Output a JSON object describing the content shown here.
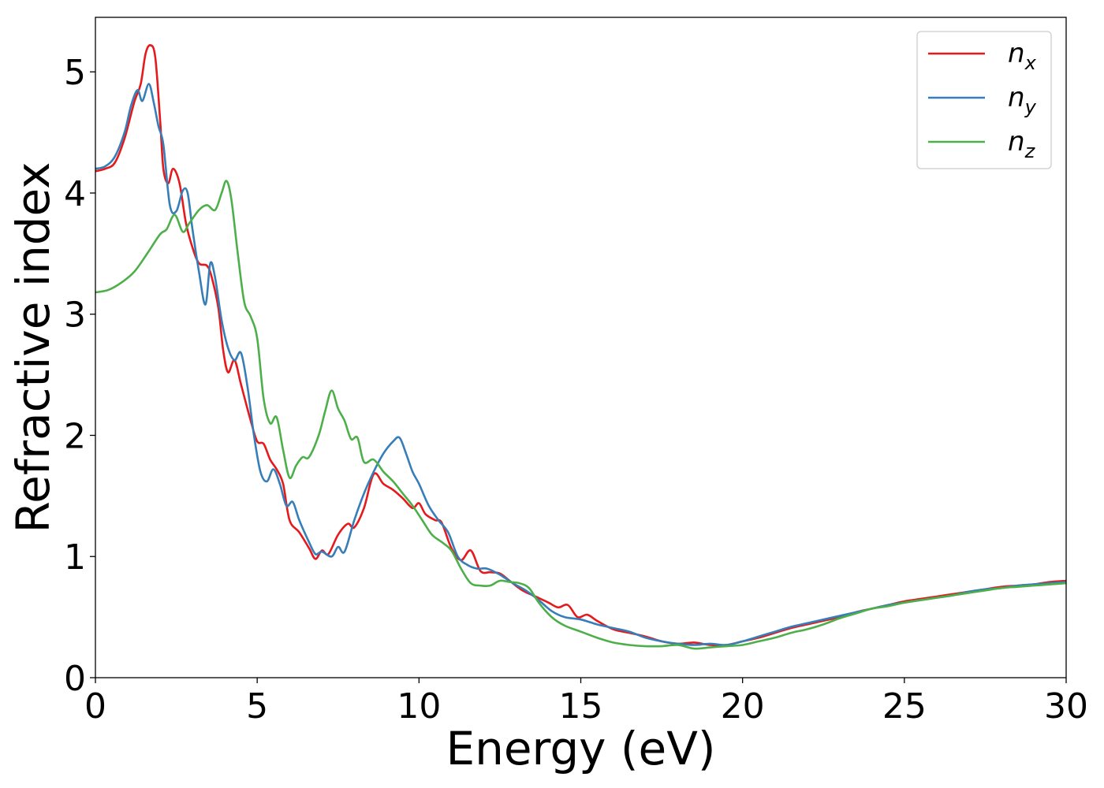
{
  "chart_data": {
    "type": "line",
    "title": "",
    "xlabel": "Energy (eV)",
    "ylabel": "Refractive index",
    "xlim": [
      0,
      30
    ],
    "ylim": [
      0,
      5.45
    ],
    "xticks": [
      0,
      5,
      10,
      15,
      20,
      25,
      30
    ],
    "yticks": [
      0,
      1,
      2,
      3,
      4,
      5
    ],
    "grid": false,
    "legend_position": "top-right",
    "series": [
      {
        "key": "nx",
        "base": "n",
        "sub": "x",
        "color": "#e41a1c",
        "points": [
          [
            0,
            4.18
          ],
          [
            0.3,
            4.2
          ],
          [
            0.6,
            4.25
          ],
          [
            0.9,
            4.45
          ],
          [
            1.2,
            4.75
          ],
          [
            1.4,
            4.9
          ],
          [
            1.55,
            5.15
          ],
          [
            1.7,
            5.22
          ],
          [
            1.85,
            5.12
          ],
          [
            2.0,
            4.6
          ],
          [
            2.1,
            4.2
          ],
          [
            2.25,
            4.08
          ],
          [
            2.4,
            4.2
          ],
          [
            2.6,
            4.08
          ],
          [
            2.8,
            3.75
          ],
          [
            3.0,
            3.55
          ],
          [
            3.2,
            3.42
          ],
          [
            3.45,
            3.4
          ],
          [
            3.6,
            3.3
          ],
          [
            3.8,
            3.05
          ],
          [
            3.95,
            2.7
          ],
          [
            4.1,
            2.52
          ],
          [
            4.3,
            2.62
          ],
          [
            4.5,
            2.42
          ],
          [
            4.8,
            2.12
          ],
          [
            5.0,
            1.95
          ],
          [
            5.2,
            1.93
          ],
          [
            5.4,
            1.8
          ],
          [
            5.6,
            1.72
          ],
          [
            5.8,
            1.6
          ],
          [
            6.0,
            1.3
          ],
          [
            6.3,
            1.2
          ],
          [
            6.6,
            1.07
          ],
          [
            6.8,
            0.98
          ],
          [
            7.0,
            1.05
          ],
          [
            7.2,
            1.02
          ],
          [
            7.5,
            1.18
          ],
          [
            7.8,
            1.27
          ],
          [
            8.0,
            1.24
          ],
          [
            8.3,
            1.4
          ],
          [
            8.6,
            1.68
          ],
          [
            8.9,
            1.6
          ],
          [
            9.2,
            1.55
          ],
          [
            9.5,
            1.48
          ],
          [
            9.8,
            1.4
          ],
          [
            10.0,
            1.44
          ],
          [
            10.2,
            1.35
          ],
          [
            10.5,
            1.3
          ],
          [
            10.7,
            1.28
          ],
          [
            11.0,
            1.07
          ],
          [
            11.3,
            0.97
          ],
          [
            11.6,
            1.05
          ],
          [
            11.9,
            0.88
          ],
          [
            12.2,
            0.87
          ],
          [
            12.5,
            0.86
          ],
          [
            12.8,
            0.8
          ],
          [
            13.2,
            0.72
          ],
          [
            13.6,
            0.67
          ],
          [
            14.0,
            0.62
          ],
          [
            14.3,
            0.58
          ],
          [
            14.6,
            0.6
          ],
          [
            14.9,
            0.5
          ],
          [
            15.2,
            0.52
          ],
          [
            15.5,
            0.47
          ],
          [
            16.0,
            0.4
          ],
          [
            16.5,
            0.37
          ],
          [
            17.0,
            0.34
          ],
          [
            17.5,
            0.3
          ],
          [
            18.0,
            0.28
          ],
          [
            18.5,
            0.29
          ],
          [
            19.0,
            0.27
          ],
          [
            19.5,
            0.27
          ],
          [
            20.0,
            0.3
          ],
          [
            20.5,
            0.33
          ],
          [
            21.0,
            0.37
          ],
          [
            21.5,
            0.41
          ],
          [
            22.0,
            0.44
          ],
          [
            22.5,
            0.47
          ],
          [
            23.0,
            0.5
          ],
          [
            23.5,
            0.54
          ],
          [
            24.0,
            0.57
          ],
          [
            24.5,
            0.6
          ],
          [
            25.0,
            0.63
          ],
          [
            25.5,
            0.65
          ],
          [
            26.0,
            0.67
          ],
          [
            26.5,
            0.69
          ],
          [
            27.0,
            0.71
          ],
          [
            27.5,
            0.73
          ],
          [
            28.0,
            0.75
          ],
          [
            28.5,
            0.76
          ],
          [
            29.0,
            0.77
          ],
          [
            29.5,
            0.79
          ],
          [
            30.0,
            0.8
          ]
        ]
      },
      {
        "key": "ny",
        "base": "n",
        "sub": "y",
        "color": "#377eb8",
        "points": [
          [
            0,
            4.2
          ],
          [
            0.3,
            4.22
          ],
          [
            0.6,
            4.3
          ],
          [
            0.9,
            4.5
          ],
          [
            1.1,
            4.72
          ],
          [
            1.3,
            4.85
          ],
          [
            1.45,
            4.76
          ],
          [
            1.65,
            4.9
          ],
          [
            1.8,
            4.75
          ],
          [
            1.95,
            4.55
          ],
          [
            2.1,
            4.4
          ],
          [
            2.3,
            3.9
          ],
          [
            2.5,
            3.85
          ],
          [
            2.7,
            4.02
          ],
          [
            2.85,
            4.0
          ],
          [
            3.0,
            3.7
          ],
          [
            3.2,
            3.35
          ],
          [
            3.4,
            3.08
          ],
          [
            3.55,
            3.42
          ],
          [
            3.7,
            3.3
          ],
          [
            3.9,
            2.95
          ],
          [
            4.1,
            2.72
          ],
          [
            4.3,
            2.62
          ],
          [
            4.5,
            2.68
          ],
          [
            4.7,
            2.4
          ],
          [
            4.9,
            2.0
          ],
          [
            5.1,
            1.7
          ],
          [
            5.3,
            1.62
          ],
          [
            5.5,
            1.72
          ],
          [
            5.7,
            1.6
          ],
          [
            5.9,
            1.42
          ],
          [
            6.1,
            1.45
          ],
          [
            6.3,
            1.3
          ],
          [
            6.6,
            1.12
          ],
          [
            6.8,
            1.02
          ],
          [
            7.0,
            1.04
          ],
          [
            7.3,
            1.0
          ],
          [
            7.5,
            1.08
          ],
          [
            7.7,
            1.04
          ],
          [
            8.0,
            1.3
          ],
          [
            8.3,
            1.52
          ],
          [
            8.6,
            1.7
          ],
          [
            8.9,
            1.85
          ],
          [
            9.2,
            1.95
          ],
          [
            9.4,
            1.98
          ],
          [
            9.6,
            1.85
          ],
          [
            9.8,
            1.7
          ],
          [
            10.0,
            1.6
          ],
          [
            10.3,
            1.42
          ],
          [
            10.6,
            1.3
          ],
          [
            10.9,
            1.2
          ],
          [
            11.2,
            1.0
          ],
          [
            11.5,
            0.93
          ],
          [
            11.8,
            0.9
          ],
          [
            12.1,
            0.9
          ],
          [
            12.5,
            0.85
          ],
          [
            12.9,
            0.78
          ],
          [
            13.3,
            0.72
          ],
          [
            13.7,
            0.64
          ],
          [
            14.1,
            0.55
          ],
          [
            14.5,
            0.5
          ],
          [
            15.0,
            0.48
          ],
          [
            15.5,
            0.44
          ],
          [
            16.0,
            0.41
          ],
          [
            16.5,
            0.38
          ],
          [
            17.0,
            0.33
          ],
          [
            17.5,
            0.3
          ],
          [
            18.0,
            0.28
          ],
          [
            18.5,
            0.27
          ],
          [
            19.0,
            0.28
          ],
          [
            19.5,
            0.27
          ],
          [
            20.0,
            0.3
          ],
          [
            20.5,
            0.34
          ],
          [
            21.0,
            0.38
          ],
          [
            21.5,
            0.42
          ],
          [
            22.0,
            0.45
          ],
          [
            22.5,
            0.48
          ],
          [
            23.0,
            0.51
          ],
          [
            23.5,
            0.54
          ],
          [
            24.0,
            0.57
          ],
          [
            24.5,
            0.6
          ],
          [
            25.0,
            0.62
          ],
          [
            25.5,
            0.64
          ],
          [
            26.0,
            0.66
          ],
          [
            26.5,
            0.68
          ],
          [
            27.0,
            0.71
          ],
          [
            27.5,
            0.73
          ],
          [
            28.0,
            0.74
          ],
          [
            28.5,
            0.76
          ],
          [
            29.0,
            0.77
          ],
          [
            29.5,
            0.78
          ],
          [
            30.0,
            0.79
          ]
        ]
      },
      {
        "key": "nz",
        "base": "n",
        "sub": "z",
        "color": "#4daf4a",
        "points": [
          [
            0,
            3.18
          ],
          [
            0.4,
            3.2
          ],
          [
            0.8,
            3.26
          ],
          [
            1.2,
            3.35
          ],
          [
            1.6,
            3.5
          ],
          [
            2.0,
            3.66
          ],
          [
            2.2,
            3.7
          ],
          [
            2.45,
            3.82
          ],
          [
            2.7,
            3.68
          ],
          [
            2.9,
            3.75
          ],
          [
            3.2,
            3.86
          ],
          [
            3.45,
            3.9
          ],
          [
            3.7,
            3.86
          ],
          [
            3.9,
            4.0
          ],
          [
            4.05,
            4.1
          ],
          [
            4.2,
            3.95
          ],
          [
            4.4,
            3.5
          ],
          [
            4.6,
            3.1
          ],
          [
            4.8,
            2.98
          ],
          [
            5.0,
            2.8
          ],
          [
            5.2,
            2.3
          ],
          [
            5.4,
            2.1
          ],
          [
            5.6,
            2.15
          ],
          [
            5.8,
            1.88
          ],
          [
            6.0,
            1.65
          ],
          [
            6.2,
            1.75
          ],
          [
            6.4,
            1.82
          ],
          [
            6.6,
            1.82
          ],
          [
            6.9,
            2.0
          ],
          [
            7.1,
            2.2
          ],
          [
            7.3,
            2.37
          ],
          [
            7.5,
            2.22
          ],
          [
            7.7,
            2.12
          ],
          [
            7.9,
            1.97
          ],
          [
            8.1,
            1.98
          ],
          [
            8.3,
            1.78
          ],
          [
            8.6,
            1.8
          ],
          [
            8.9,
            1.7
          ],
          [
            9.2,
            1.62
          ],
          [
            9.5,
            1.52
          ],
          [
            9.8,
            1.42
          ],
          [
            10.1,
            1.3
          ],
          [
            10.4,
            1.18
          ],
          [
            10.7,
            1.12
          ],
          [
            11.0,
            1.05
          ],
          [
            11.3,
            0.9
          ],
          [
            11.6,
            0.78
          ],
          [
            11.9,
            0.76
          ],
          [
            12.2,
            0.76
          ],
          [
            12.5,
            0.8
          ],
          [
            12.8,
            0.79
          ],
          [
            13.1,
            0.78
          ],
          [
            13.4,
            0.74
          ],
          [
            13.7,
            0.62
          ],
          [
            14.1,
            0.5
          ],
          [
            14.5,
            0.43
          ],
          [
            15.0,
            0.38
          ],
          [
            15.5,
            0.33
          ],
          [
            16.0,
            0.29
          ],
          [
            16.5,
            0.27
          ],
          [
            17.0,
            0.26
          ],
          [
            17.5,
            0.26
          ],
          [
            18.0,
            0.27
          ],
          [
            18.5,
            0.24
          ],
          [
            19.0,
            0.25
          ],
          [
            19.5,
            0.26
          ],
          [
            20.0,
            0.27
          ],
          [
            20.5,
            0.3
          ],
          [
            21.0,
            0.33
          ],
          [
            21.5,
            0.37
          ],
          [
            22.0,
            0.4
          ],
          [
            22.5,
            0.44
          ],
          [
            23.0,
            0.49
          ],
          [
            23.5,
            0.53
          ],
          [
            24.0,
            0.57
          ],
          [
            24.5,
            0.59
          ],
          [
            25.0,
            0.62
          ],
          [
            25.5,
            0.64
          ],
          [
            26.0,
            0.66
          ],
          [
            26.5,
            0.68
          ],
          [
            27.0,
            0.7
          ],
          [
            27.5,
            0.72
          ],
          [
            28.0,
            0.74
          ],
          [
            28.5,
            0.75
          ],
          [
            29.0,
            0.76
          ],
          [
            29.5,
            0.77
          ],
          [
            30.0,
            0.78
          ]
        ]
      }
    ]
  }
}
